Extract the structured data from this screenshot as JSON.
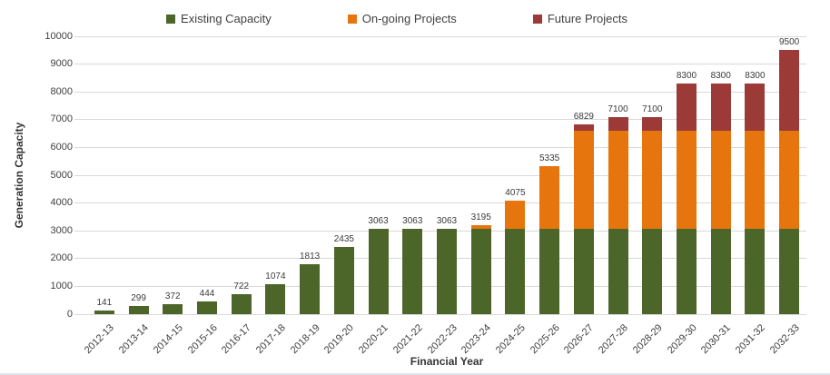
{
  "chart_data": {
    "type": "bar",
    "stacked": true,
    "title": "",
    "xlabel": "Financial Year",
    "ylabel": "Generation Capacity",
    "ylim": [
      0,
      10000
    ],
    "ytick_step": 1000,
    "grid": true,
    "legend_position": "top",
    "categories": [
      "2012-13",
      "2013-14",
      "2014-15",
      "2015-16",
      "2016-17",
      "2017-18",
      "2018-19",
      "2019-20",
      "2020-21",
      "2021-22",
      "2022-23",
      "2023-24",
      "2024-25",
      "2025-26",
      "2026-27",
      "2027-28",
      "2028-29",
      "2029-30",
      "2030-31",
      "2031-32",
      "2032-33"
    ],
    "series": [
      {
        "name": "Existing Capacity",
        "color": "#4c662a",
        "values": [
          141,
          299,
          372,
          444,
          722,
          1074,
          1813,
          2435,
          3063,
          3063,
          3063,
          3063,
          3063,
          3063,
          3063,
          3063,
          3063,
          3063,
          3063,
          3063,
          3063
        ]
      },
      {
        "name": "On-going Projects",
        "color": "#e6750e",
        "values": [
          0,
          0,
          0,
          0,
          0,
          0,
          0,
          0,
          0,
          0,
          0,
          132,
          1012,
          2272,
          3537,
          3537,
          3537,
          3537,
          3537,
          3537,
          3537
        ]
      },
      {
        "name": "Future Projects",
        "color": "#9b3a37",
        "values": [
          0,
          0,
          0,
          0,
          0,
          0,
          0,
          0,
          0,
          0,
          0,
          0,
          0,
          0,
          229,
          500,
          500,
          1700,
          1700,
          1700,
          2900
        ]
      }
    ],
    "totals": [
      141,
      299,
      372,
      444,
      722,
      1074,
      1813,
      2435,
      3063,
      3063,
      3063,
      3195,
      4075,
      5335,
      6829,
      7100,
      7100,
      8300,
      8300,
      8300,
      9500
    ]
  },
  "style": {
    "gridline_color": "#d9d9d9",
    "text_color": "#404040",
    "background": "#ffffff"
  }
}
